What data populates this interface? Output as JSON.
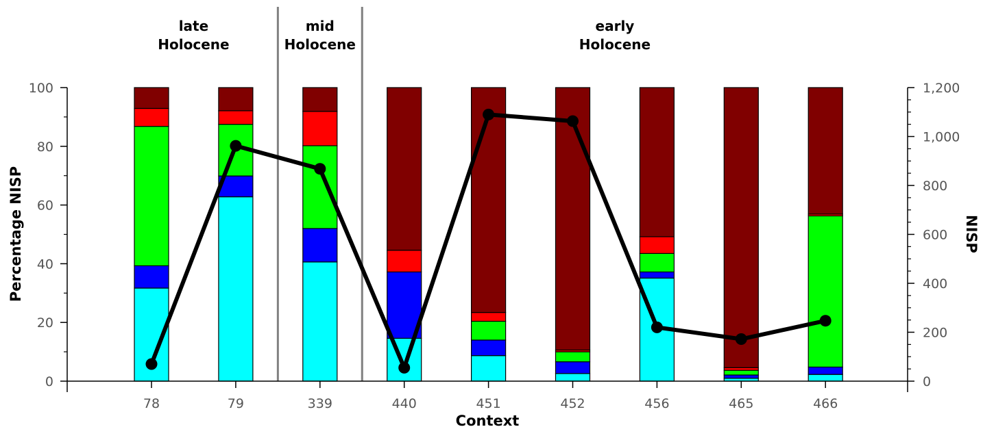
{
  "chart_data": {
    "type": "bar",
    "stacked": true,
    "categories": [
      "78",
      "79",
      "339",
      "440",
      "451",
      "452",
      "456",
      "465",
      "466"
    ],
    "xlabel": "Context",
    "ylabel": "Percentage NISP",
    "ylim": [
      0,
      100
    ],
    "yticks": [
      "0",
      "20",
      "40",
      "60",
      "80",
      "100"
    ],
    "y2label": "NISP",
    "y2lim": [
      0,
      1200
    ],
    "y2ticks": [
      "0",
      "200",
      "400",
      "600",
      "800",
      "1,000",
      "1,200"
    ],
    "grid": false,
    "legend": "none",
    "series": [
      {
        "color": "#00ffff",
        "values": [
          31.7,
          62.8,
          40.6,
          14.6,
          8.7,
          2.6,
          35.1,
          1.0,
          2.3
        ]
      },
      {
        "color": "#0000ff",
        "values": [
          7.6,
          7.1,
          11.4,
          22.6,
          5.3,
          4.0,
          2.1,
          1.1,
          2.5
        ]
      },
      {
        "color": "#00ff00",
        "values": [
          47.5,
          17.6,
          28.2,
          0.0,
          6.4,
          3.4,
          6.3,
          1.6,
          51.5
        ]
      },
      {
        "color": "#ff0000",
        "values": [
          6.1,
          4.6,
          11.7,
          7.4,
          3.0,
          0.6,
          5.7,
          0.9,
          0.6
        ]
      },
      {
        "color": "#800000",
        "values": [
          7.1,
          7.9,
          8.1,
          55.4,
          76.6,
          89.4,
          50.8,
          95.4,
          43.1
        ]
      }
    ],
    "line": {
      "axis": "right",
      "color": "#000000",
      "values": [
        70,
        962,
        868,
        55,
        1090,
        1063,
        220,
        172,
        247
      ]
    },
    "periods": [
      {
        "line1": "late",
        "line2": "Holocene",
        "from": 0,
        "to": 1
      },
      {
        "line1": "mid",
        "line2": "Holocene",
        "from": 2,
        "to": 2
      },
      {
        "line1": "early",
        "line2": "Holocene",
        "from": 3,
        "to": 8
      }
    ]
  }
}
